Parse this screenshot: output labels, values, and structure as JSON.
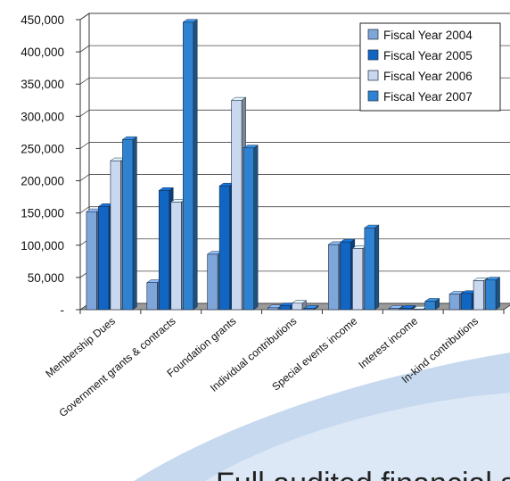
{
  "chart_data": {
    "type": "bar",
    "categories": [
      "Membership Dues",
      "Government grants & contracts",
      "Foundation grants",
      "Individual contributions",
      "Special events income",
      "Interest income",
      "In-kind contributions"
    ],
    "series": [
      {
        "name": "Fiscal Year 2004",
        "values": [
          152000,
          42000,
          86000,
          3000,
          101000,
          2000,
          24000
        ],
        "color": "#7fa6d9"
      },
      {
        "name": "Fiscal Year 2005",
        "values": [
          160000,
          185000,
          192000,
          6000,
          105000,
          2000,
          25000
        ],
        "color": "#1166c4"
      },
      {
        "name": "Fiscal Year 2006",
        "values": [
          231000,
          167000,
          325000,
          10000,
          95000,
          1000,
          45000
        ],
        "color": "#c9d8ee"
      },
      {
        "name": "Fiscal Year 2007",
        "values": [
          264000,
          446000,
          251000,
          2000,
          127000,
          13000,
          46000
        ],
        "color": "#2f82cf"
      }
    ],
    "yticks": [
      0,
      50000,
      100000,
      150000,
      200000,
      250000,
      300000,
      350000,
      400000,
      450000
    ],
    "ytick_labels": [
      "-",
      "50,000",
      "100,000",
      "150,000",
      "200,000",
      "250,000",
      "300,000",
      "350,000",
      "400,000",
      "450,000"
    ],
    "ylim": [
      0,
      450000
    ],
    "grid": true,
    "legend": "top-right",
    "xlabel": "",
    "ylabel": "",
    "title": ""
  },
  "footer_text": "Full audited financial st"
}
